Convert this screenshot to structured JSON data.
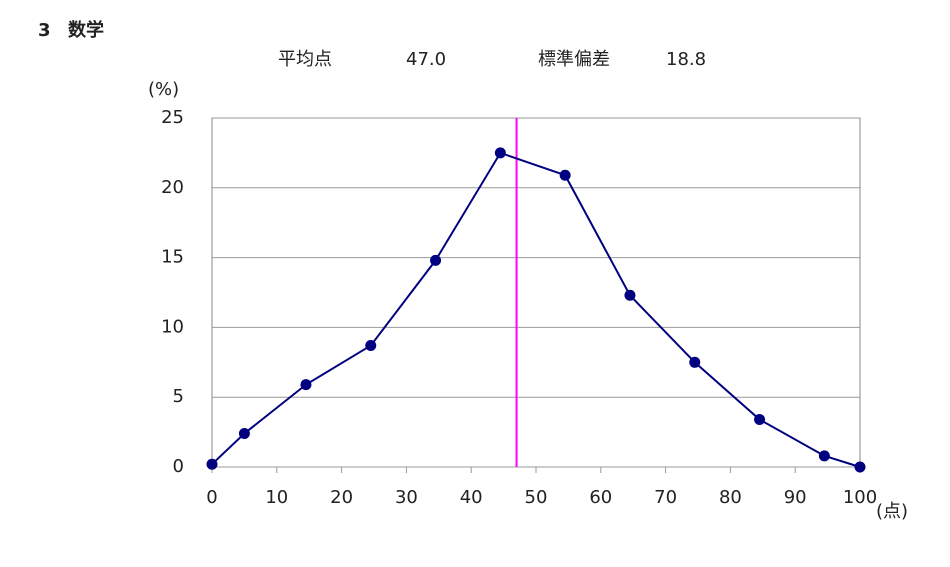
{
  "chart_data": {
    "type": "line",
    "section_number": "3",
    "title": "数学",
    "mean_name": "平均点",
    "mean": {
      "value": 47.0,
      "label": "47.0"
    },
    "sd_name": "標準偏差",
    "sd": 18.8,
    "mean_color": "#ff00ff",
    "ylabel": "(%)",
    "xlabel": "(点)",
    "x": [
      0,
      5,
      14.5,
      24.5,
      34.5,
      44.5,
      54.5,
      64.5,
      74.5,
      84.5,
      94.5,
      100
    ],
    "values": [
      0.2,
      2.4,
      5.9,
      8.7,
      14.8,
      22.5,
      20.9,
      12.3,
      7.5,
      3.4,
      0.8,
      0
    ],
    "color": "#000080",
    "xlim": [
      0,
      100
    ],
    "xticks": [
      0,
      10,
      20,
      30,
      40,
      50,
      60,
      70,
      80,
      90,
      100
    ],
    "ylim": [
      0,
      25
    ],
    "yticks": [
      0,
      5,
      10,
      15,
      20,
      25
    ],
    "grid": true
  }
}
